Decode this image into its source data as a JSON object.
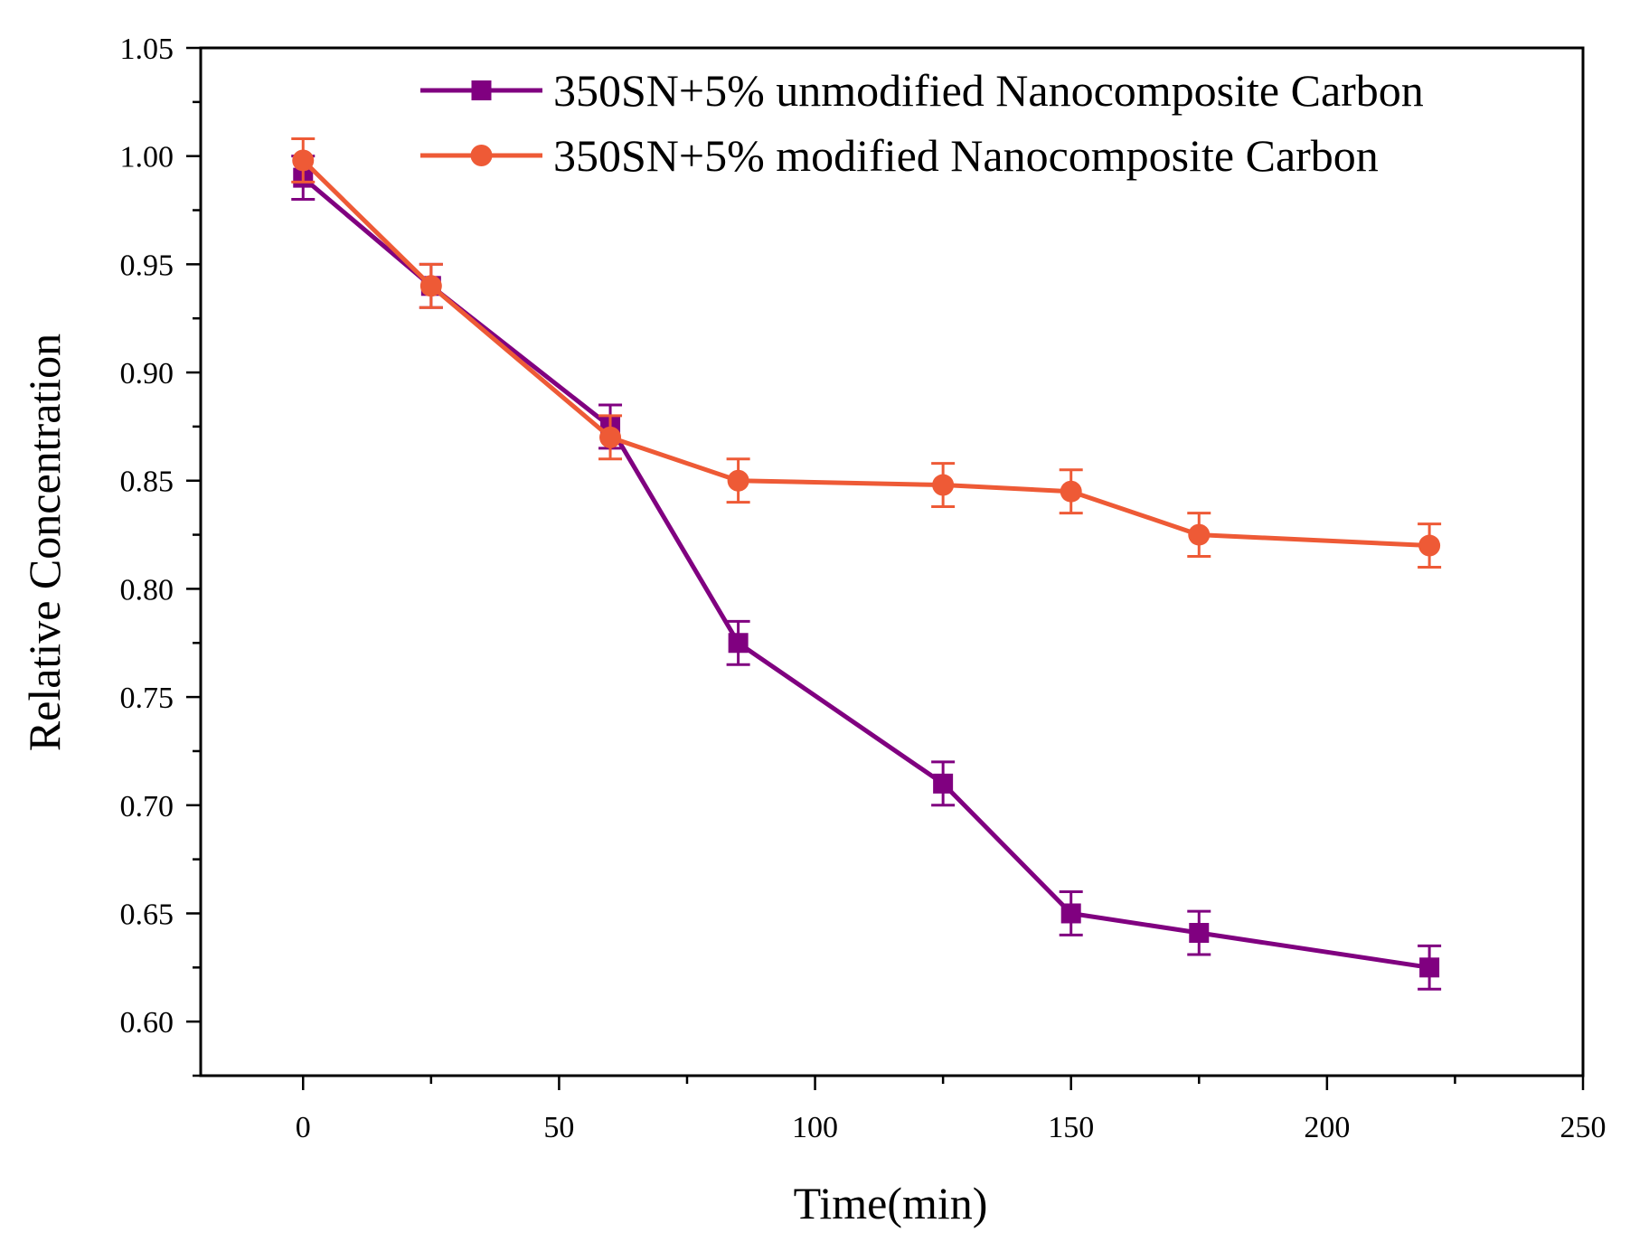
{
  "chart_data": {
    "type": "line",
    "xlabel": "Time(min)",
    "ylabel": "Relative Concentration",
    "xlim": [
      -20,
      250
    ],
    "ylim": [
      0.575,
      1.05
    ],
    "x_ticks": [
      0,
      50,
      100,
      150,
      200,
      250
    ],
    "x_tick_labels": [
      "0",
      "50",
      "100",
      "150",
      "200",
      "250"
    ],
    "y_ticks": [
      0.6,
      0.65,
      0.7,
      0.75,
      0.8,
      0.85,
      0.9,
      0.95,
      1.0,
      1.05
    ],
    "y_tick_labels": [
      "0.60",
      "0.65",
      "0.70",
      "0.75",
      "0.80",
      "0.85",
      "0.90",
      "0.95",
      "1.00",
      "1.05"
    ],
    "grid": false,
    "legend_position": "top-right",
    "series": [
      {
        "name": "350SN+5% unmodified Nanocomposite Carbon",
        "marker": "square",
        "color": "#800080",
        "x": [
          0,
          25,
          60,
          85,
          125,
          150,
          175,
          220
        ],
        "y": [
          0.99,
          0.94,
          0.875,
          0.775,
          0.71,
          0.65,
          0.641,
          0.625
        ],
        "error": [
          0.01,
          0.01,
          0.01,
          0.01,
          0.01,
          0.01,
          0.01,
          0.01
        ]
      },
      {
        "name": "350SN+5% modified Nanocomposite Carbon",
        "marker": "circle",
        "color": "#EE5A36",
        "x": [
          0,
          25,
          60,
          85,
          125,
          150,
          175,
          220
        ],
        "y": [
          0.998,
          0.94,
          0.87,
          0.85,
          0.848,
          0.845,
          0.825,
          0.82
        ],
        "error": [
          0.01,
          0.01,
          0.01,
          0.01,
          0.01,
          0.01,
          0.01,
          0.01
        ]
      }
    ]
  }
}
